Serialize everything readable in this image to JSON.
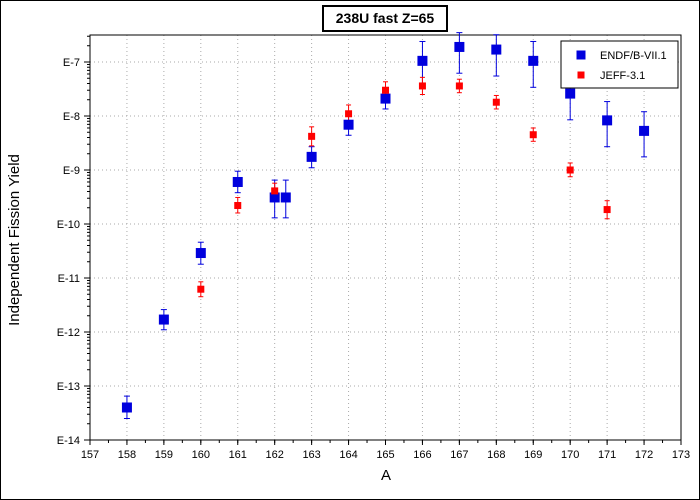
{
  "chart_data": {
    "type": "scatter",
    "title": "238U fast Z=65",
    "xlabel": "A",
    "ylabel": "Independent Fission Yield",
    "xlim": [
      157,
      173
    ],
    "ylim_exponent": [
      -14,
      -6.5
    ],
    "yscale": "log",
    "grid": true,
    "legend_position": "top-right",
    "x_ticks": [
      "157",
      "158",
      "159",
      "160",
      "161",
      "162",
      "163",
      "164",
      "165",
      "166",
      "167",
      "168",
      "169",
      "170",
      "171",
      "172",
      "173"
    ],
    "y_ticks": [
      {
        "label": "E-7",
        "exp": -7
      },
      {
        "label": "E-8",
        "exp": -8
      },
      {
        "label": "E-9",
        "exp": -9
      },
      {
        "label": "E-10",
        "exp": -10
      },
      {
        "label": "E-11",
        "exp": -11
      },
      {
        "label": "E-12",
        "exp": -12
      },
      {
        "label": "E-13",
        "exp": -13
      },
      {
        "label": "E-14",
        "exp": -14
      }
    ],
    "series": [
      {
        "name": "ENDF/B-VII.1",
        "color": "#0000dd",
        "marker": "square-large",
        "points": [
          {
            "x": 158,
            "y": "4E-14",
            "lo": "2.5E-14",
            "hi": "6.5E-14"
          },
          {
            "x": 159,
            "y": "1.7E-12",
            "lo": "1.1E-12",
            "hi": "2.6E-12"
          },
          {
            "x": 160,
            "y": "2.9E-11",
            "lo": "1.8E-11",
            "hi": "4.6E-11"
          },
          {
            "x": 161,
            "y": "6E-10",
            "lo": "3.8E-10",
            "hi": "9.5E-10"
          },
          {
            "x": 162,
            "y": "3.1E-10",
            "lo": "1.3E-10",
            "hi": "6.5E-10"
          },
          {
            "x": 162.3,
            "y": "3.1E-10",
            "lo": "1.3E-10",
            "hi": "6.5E-10"
          },
          {
            "x": 163,
            "y": "1.75E-9",
            "lo": "1.1E-9",
            "hi": "2.7E-9"
          },
          {
            "x": 164,
            "y": "6.9E-9",
            "lo": "4.4E-9",
            "hi": "1.1E-8"
          },
          {
            "x": 165,
            "y": "2.1E-8",
            "lo": "1.35E-8",
            "hi": "3.3E-8"
          },
          {
            "x": 166,
            "y": "1.05E-7",
            "lo": "3.5E-8",
            "hi": "2.4E-7"
          },
          {
            "x": 167,
            "y": "1.9E-7",
            "lo": "6.2E-8",
            "hi": "3.5E-7"
          },
          {
            "x": 168,
            "y": "1.7E-7",
            "lo": "5.5E-8",
            "hi": "3.2E-7"
          },
          {
            "x": 169,
            "y": "1.05E-7",
            "lo": "3.4E-8",
            "hi": "2.4E-7"
          },
          {
            "x": 170,
            "y": "2.6E-8",
            "lo": "8.5E-9",
            "hi": "6E-8"
          },
          {
            "x": 171,
            "y": "8.3E-9",
            "lo": "2.7E-9",
            "hi": "1.85E-8"
          },
          {
            "x": 172,
            "y": "5.3E-9",
            "lo": "1.75E-9",
            "hi": "1.2E-8"
          }
        ]
      },
      {
        "name": "JEFF-3.1",
        "color": "#ff0000",
        "marker": "square-small",
        "points": [
          {
            "x": 160,
            "y": "6.2E-12",
            "lo": "4.5E-12",
            "hi": "8.5E-12"
          },
          {
            "x": 161,
            "y": "2.2E-10",
            "lo": "1.6E-10",
            "hi": "3.1E-10"
          },
          {
            "x": 162,
            "y": "4.1E-10",
            "lo": "3.0E-10",
            "hi": "5.7E-10"
          },
          {
            "x": 163,
            "y": "4.2E-9",
            "lo": "2.8E-9",
            "hi": "6.3E-9"
          },
          {
            "x": 164,
            "y": "1.1E-8",
            "lo": "7.5E-9",
            "hi": "1.6E-8"
          },
          {
            "x": 165,
            "y": "3.0E-8",
            "lo": "2.1E-8",
            "hi": "4.3E-8"
          },
          {
            "x": 166,
            "y": "3.6E-8",
            "lo": "2.5E-8",
            "hi": "5.2E-8"
          },
          {
            "x": 167,
            "y": "3.6E-8",
            "lo": "2.7E-8",
            "hi": "4.8E-8"
          },
          {
            "x": 168,
            "y": "1.8E-8",
            "lo": "1.35E-8",
            "hi": "2.4E-8"
          },
          {
            "x": 169,
            "y": "4.5E-9",
            "lo": "3.4E-9",
            "hi": "6.0E-9"
          },
          {
            "x": 170,
            "y": "1.0E-9",
            "lo": "7.5E-10",
            "hi": "1.35E-9"
          },
          {
            "x": 171,
            "y": "1.85E-10",
            "lo": "1.25E-10",
            "hi": "2.7E-10"
          }
        ]
      }
    ]
  }
}
